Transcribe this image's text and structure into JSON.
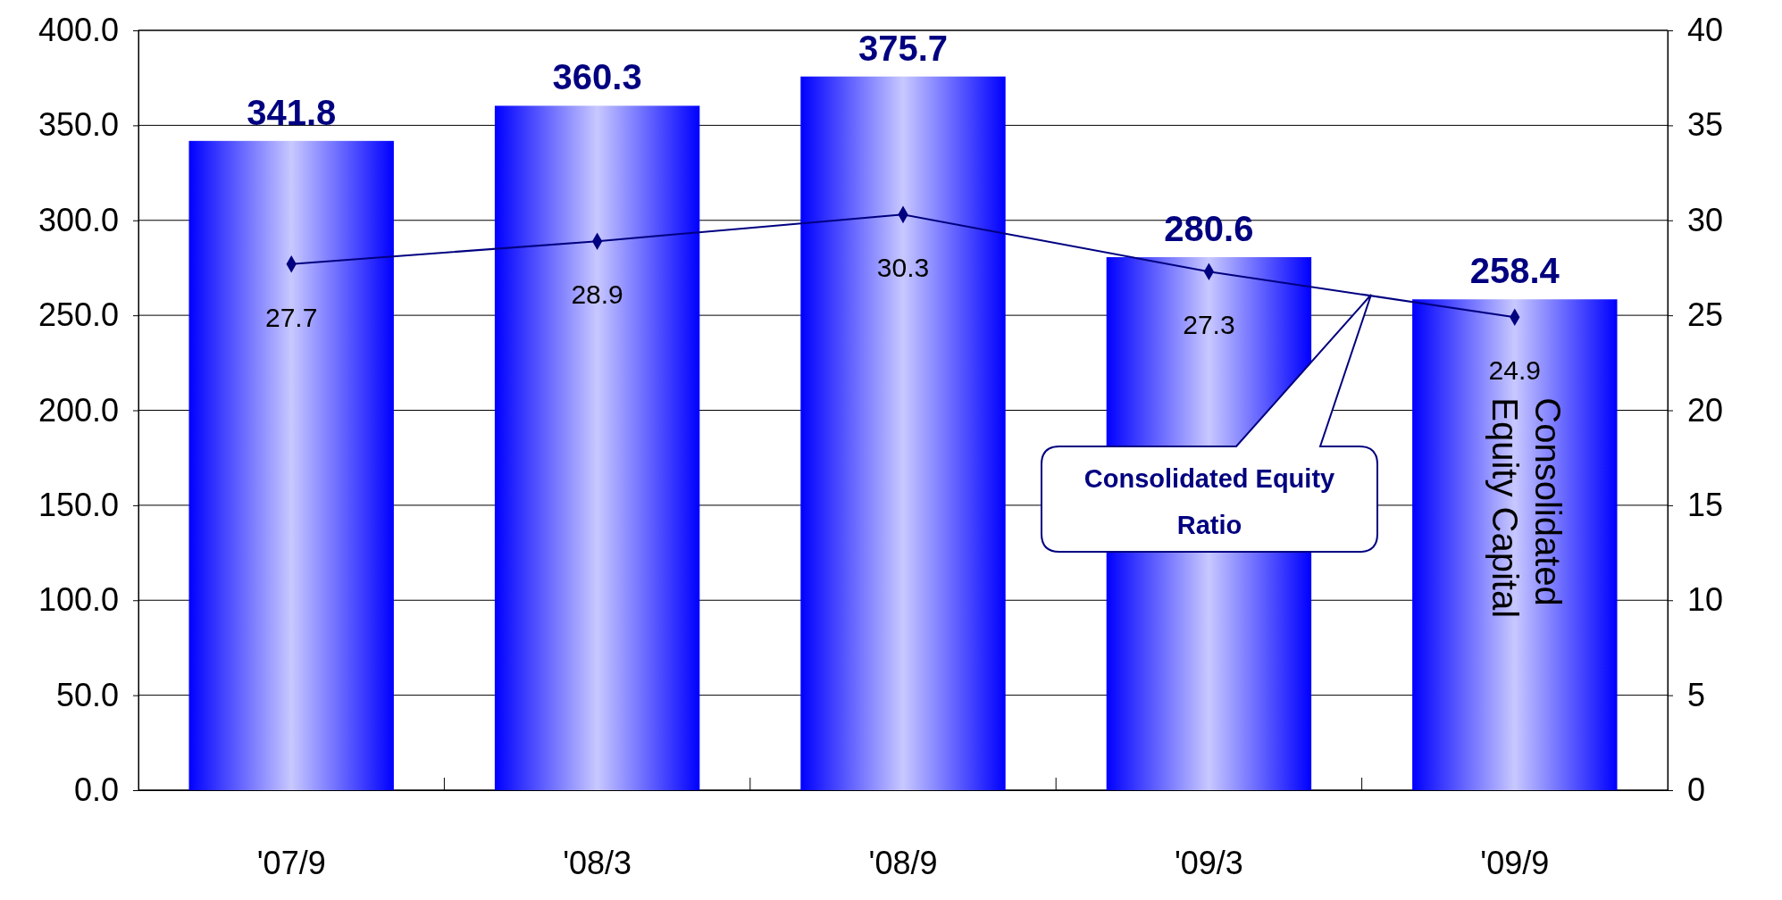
{
  "chart_data": {
    "type": "bar",
    "categories": [
      "'07/9",
      "'08/3",
      "'08/9",
      "'09/3",
      "'09/9"
    ],
    "series": [
      {
        "name": "Consolidated Equity Capital",
        "color": "#0000ff",
        "values": [
          341.8,
          360.3,
          375.7,
          280.6,
          258.4
        ]
      },
      {
        "name": "Consolidated Equity Ratio",
        "type": "line",
        "axis": "y2",
        "color": "#000080",
        "values": [
          27.7,
          28.9,
          30.3,
          27.3,
          24.9
        ]
      }
    ],
    "ylim": [
      0,
      400
    ],
    "yticks": [
      {
        "value": 0,
        "label": "0.0"
      },
      {
        "value": 50,
        "label": "50.0"
      },
      {
        "value": 100,
        "label": "100.0"
      },
      {
        "value": 150,
        "label": "150.0"
      },
      {
        "value": 200,
        "label": "200.0"
      },
      {
        "value": 250,
        "label": "250.0"
      },
      {
        "value": 300,
        "label": "300.0"
      },
      {
        "value": 350,
        "label": "350.0"
      },
      {
        "value": 400,
        "label": "400.0"
      }
    ],
    "y2lim": [
      0,
      40
    ],
    "y2ticks": [
      0,
      5,
      10,
      15,
      20,
      25,
      30,
      35,
      40
    ],
    "grid": "y",
    "data_labels": true,
    "marker": "diamond",
    "line_style": "solid"
  }
}
